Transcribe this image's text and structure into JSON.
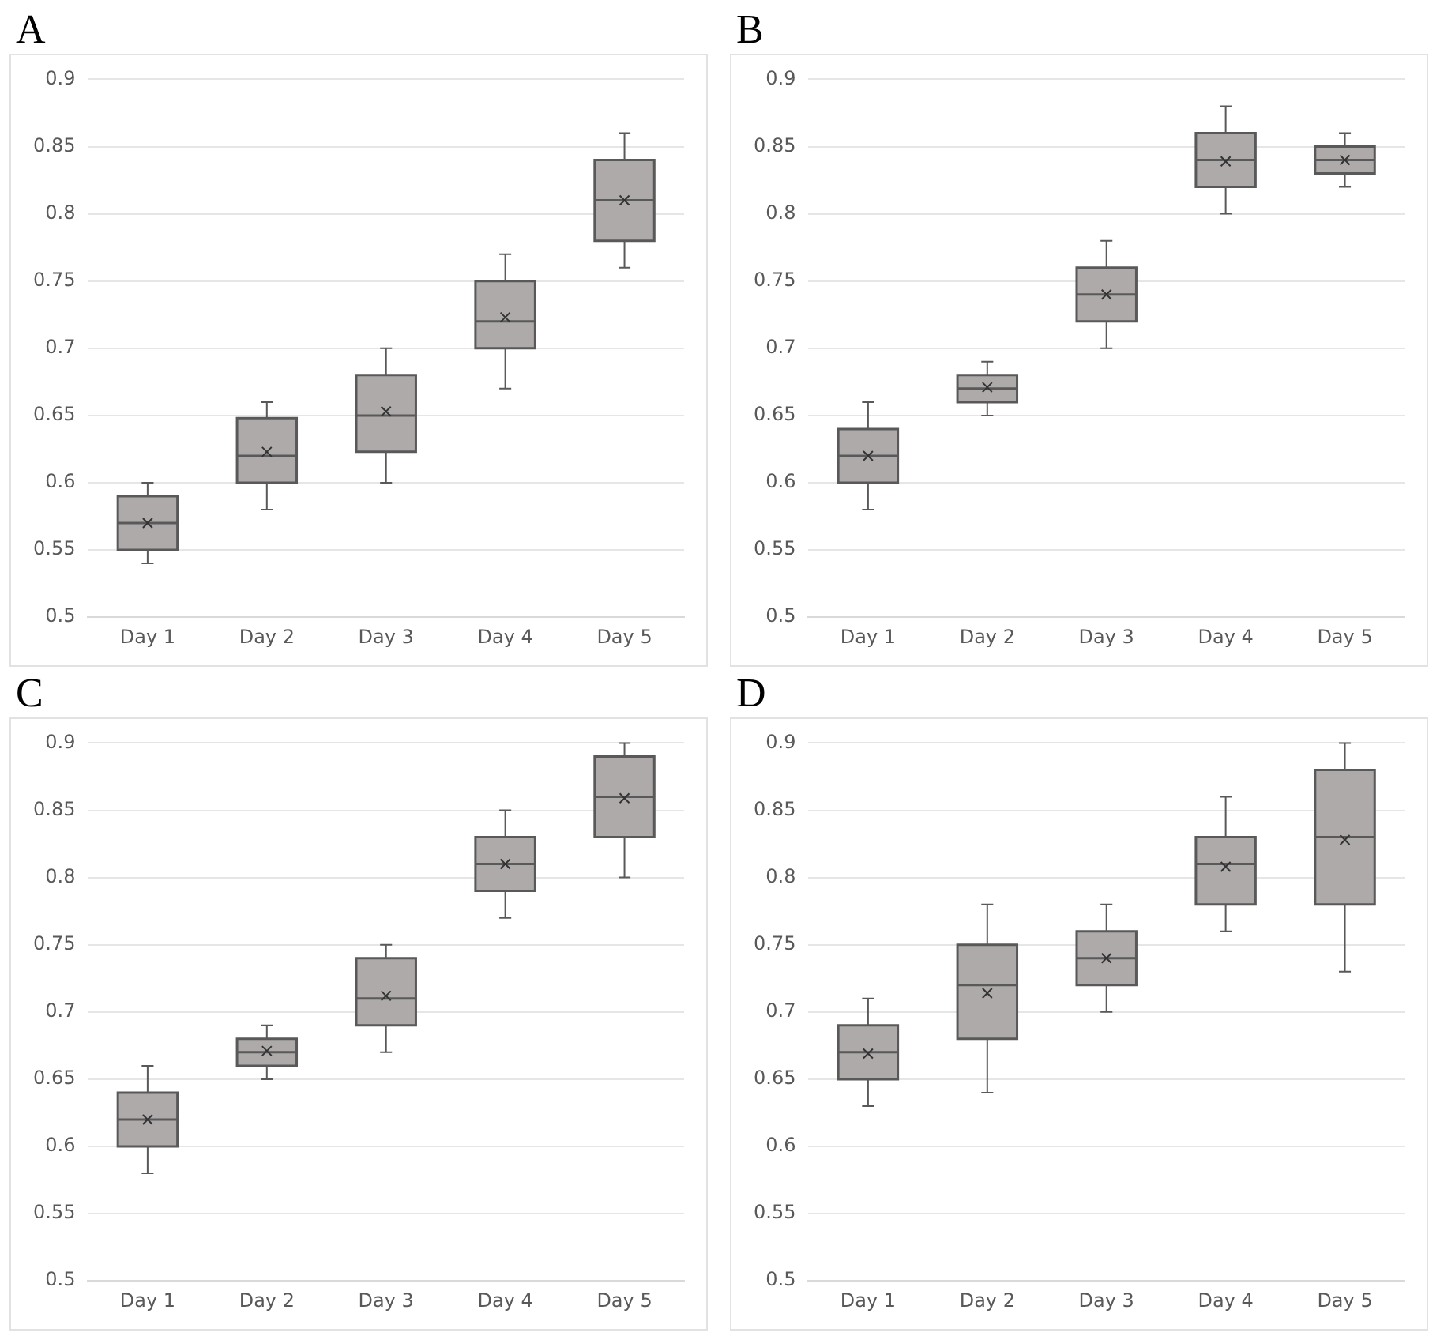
{
  "chart_data": [
    {
      "type": "box",
      "title": "A",
      "categories": [
        "Day 1",
        "Day 2",
        "Day 3",
        "Day 4",
        "Day 5"
      ],
      "ylim": [
        0.5,
        0.9
      ],
      "yticks": [
        0.5,
        0.55,
        0.6,
        0.65,
        0.7,
        0.75,
        0.8,
        0.85,
        0.9
      ],
      "grid": "y",
      "marker": "cross",
      "series": [
        {
          "color": "#aeaaaa",
          "boxes": [
            {
              "low": 0.54,
              "q1": 0.55,
              "median": 0.57,
              "q3": 0.59,
              "high": 0.6,
              "mean": 0.57
            },
            {
              "low": 0.58,
              "q1": 0.6,
              "median": 0.62,
              "q3": 0.648,
              "high": 0.66,
              "mean": 0.623
            },
            {
              "low": 0.6,
              "q1": 0.623,
              "median": 0.65,
              "q3": 0.68,
              "high": 0.7,
              "mean": 0.653
            },
            {
              "low": 0.67,
              "q1": 0.7,
              "median": 0.72,
              "q3": 0.75,
              "high": 0.77,
              "mean": 0.723
            },
            {
              "low": 0.76,
              "q1": 0.78,
              "median": 0.81,
              "q3": 0.84,
              "high": 0.86,
              "mean": 0.81
            }
          ]
        }
      ]
    },
    {
      "type": "box",
      "title": "B",
      "categories": [
        "Day 1",
        "Day 2",
        "Day 3",
        "Day 4",
        "Day 5"
      ],
      "ylim": [
        0.5,
        0.9
      ],
      "yticks": [
        0.5,
        0.55,
        0.6,
        0.65,
        0.7,
        0.75,
        0.8,
        0.85,
        0.9
      ],
      "grid": "y",
      "marker": "cross",
      "series": [
        {
          "color": "#aeaaaa",
          "boxes": [
            {
              "low": 0.58,
              "q1": 0.6,
              "median": 0.62,
              "q3": 0.64,
              "high": 0.66,
              "mean": 0.62
            },
            {
              "low": 0.65,
              "q1": 0.66,
              "median": 0.67,
              "q3": 0.68,
              "high": 0.69,
              "mean": 0.671
            },
            {
              "low": 0.7,
              "q1": 0.72,
              "median": 0.74,
              "q3": 0.76,
              "high": 0.78,
              "mean": 0.74
            },
            {
              "low": 0.8,
              "q1": 0.82,
              "median": 0.84,
              "q3": 0.86,
              "high": 0.88,
              "mean": 0.839
            },
            {
              "low": 0.82,
              "q1": 0.83,
              "median": 0.84,
              "q3": 0.85,
              "high": 0.86,
              "mean": 0.84
            }
          ]
        }
      ]
    },
    {
      "type": "box",
      "title": "C",
      "categories": [
        "Day 1",
        "Day 2",
        "Day 3",
        "Day 4",
        "Day 5"
      ],
      "ylim": [
        0.5,
        0.9
      ],
      "yticks": [
        0.5,
        0.55,
        0.6,
        0.65,
        0.7,
        0.75,
        0.8,
        0.85,
        0.9
      ],
      "grid": "y",
      "marker": "cross",
      "series": [
        {
          "color": "#aeaaaa",
          "boxes": [
            {
              "low": 0.58,
              "q1": 0.6,
              "median": 0.62,
              "q3": 0.64,
              "high": 0.66,
              "mean": 0.62
            },
            {
              "low": 0.65,
              "q1": 0.66,
              "median": 0.67,
              "q3": 0.68,
              "high": 0.69,
              "mean": 0.671
            },
            {
              "low": 0.67,
              "q1": 0.69,
              "median": 0.71,
              "q3": 0.74,
              "high": 0.75,
              "mean": 0.712
            },
            {
              "low": 0.77,
              "q1": 0.79,
              "median": 0.81,
              "q3": 0.83,
              "high": 0.85,
              "mean": 0.81
            },
            {
              "low": 0.8,
              "q1": 0.83,
              "median": 0.86,
              "q3": 0.89,
              "high": 0.9,
              "mean": 0.859
            }
          ]
        }
      ]
    },
    {
      "type": "box",
      "title": "D",
      "categories": [
        "Day 1",
        "Day 2",
        "Day 3",
        "Day 4",
        "Day 5"
      ],
      "ylim": [
        0.5,
        0.9
      ],
      "yticks": [
        0.5,
        0.55,
        0.6,
        0.65,
        0.7,
        0.75,
        0.8,
        0.85,
        0.9
      ],
      "grid": "y",
      "marker": "cross",
      "series": [
        {
          "color": "#aeaaaa",
          "boxes": [
            {
              "low": 0.63,
              "q1": 0.65,
              "median": 0.67,
              "q3": 0.69,
              "high": 0.71,
              "mean": 0.669
            },
            {
              "low": 0.64,
              "q1": 0.68,
              "median": 0.72,
              "q3": 0.75,
              "high": 0.78,
              "mean": 0.714
            },
            {
              "low": 0.7,
              "q1": 0.72,
              "median": 0.74,
              "q3": 0.76,
              "high": 0.78,
              "mean": 0.74
            },
            {
              "low": 0.76,
              "q1": 0.78,
              "median": 0.81,
              "q3": 0.83,
              "high": 0.86,
              "mean": 0.808
            },
            {
              "low": 0.73,
              "q1": 0.78,
              "median": 0.83,
              "q3": 0.88,
              "high": 0.9,
              "mean": 0.828
            }
          ]
        }
      ]
    }
  ]
}
